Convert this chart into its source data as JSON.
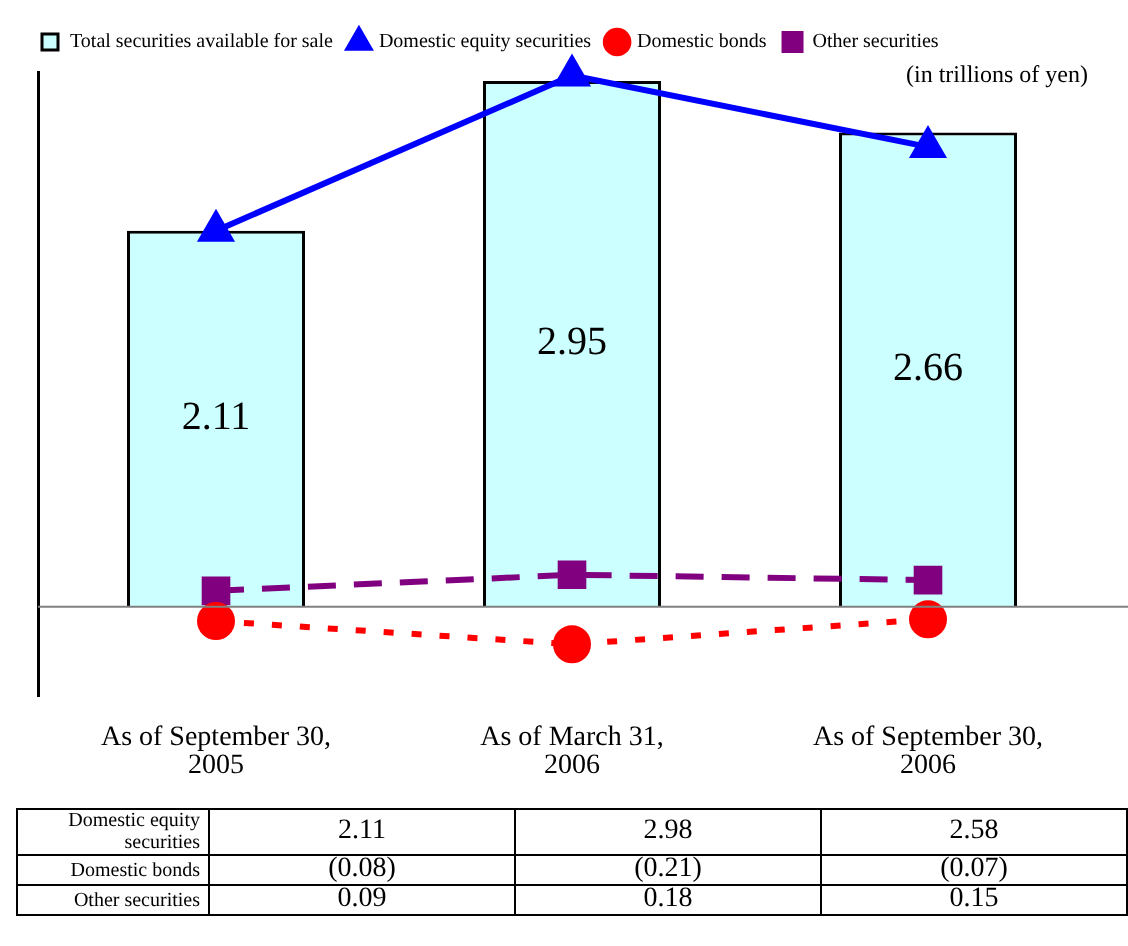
{
  "chart_data": {
    "type": "bar",
    "categories": [
      "As of September 30, 2005",
      "As of March 31, 2006",
      "As of September 30, 2006"
    ],
    "series": [
      {
        "name": "Total securities available for sale",
        "color": "#ccffff",
        "values": [
          2.11,
          2.95,
          2.66
        ],
        "value_labels": [
          "2.11",
          "2.95",
          "2.66"
        ]
      },
      {
        "name": "Domestic equity securities",
        "type": "line",
        "color": "#0000ff",
        "marker": "triangle",
        "line_style": "solid",
        "values": [
          2.11,
          2.98,
          2.58
        ],
        "value_labels": [
          "2.11",
          "2.98",
          "2.58"
        ]
      },
      {
        "name": "Domestic bonds",
        "type": "line",
        "color": "#ff0000",
        "marker": "circle",
        "line_style": "dotted",
        "values": [
          -0.08,
          -0.21,
          -0.07
        ],
        "value_labels": [
          "(0.08)",
          "(0.21)",
          "(0.07)"
        ]
      },
      {
        "name": "Other securities",
        "type": "line",
        "color": "#800080",
        "marker": "square",
        "line_style": "dashed",
        "values": [
          0.09,
          0.18,
          0.15
        ],
        "value_labels": [
          "0.09",
          "0.18",
          "0.15"
        ]
      }
    ],
    "ref_lines": [
      {
        "axis": "y",
        "value": 0,
        "color": "#808080"
      }
    ],
    "annotations": [
      "(in trillions of yen)"
    ],
    "legend": "top left",
    "grid": false
  }
}
